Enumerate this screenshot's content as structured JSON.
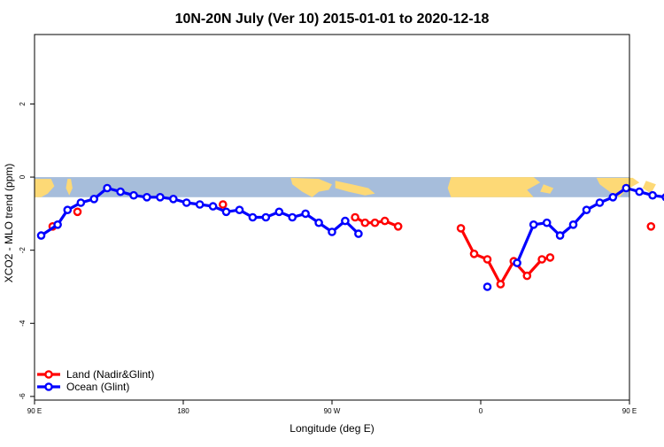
{
  "chart_data": {
    "type": "line",
    "title": "10N-20N July (Ver 10)   2015-01-01 to 2020-12-18",
    "xlabel": "Longitude (deg E)",
    "ylabel": "XCO2 - MLO trend (ppm)",
    "xlim": [
      90,
      450
    ],
    "ylim": [
      -6.1,
      3.9
    ],
    "x_ticks": [
      {
        "value": 90,
        "label": "90 E"
      },
      {
        "value": 180,
        "label": "180"
      },
      {
        "value": 270,
        "label": "90 W"
      },
      {
        "value": 360,
        "label": "0"
      },
      {
        "value": 450,
        "label": "90 E"
      },
      {
        "value": 540,
        "label": "180"
      }
    ],
    "y_ticks": [
      {
        "value": -6,
        "label": "-6"
      },
      {
        "value": -4,
        "label": "-4"
      },
      {
        "value": -2,
        "label": "-2"
      },
      {
        "value": 0,
        "label": "0"
      },
      {
        "value": 2,
        "label": "2"
      }
    ],
    "legend_position": "bottom-left",
    "map_strip": {
      "ymin": -0.55,
      "ymax": 0.0,
      "ocean_color": "#a6bddb",
      "land_color": "#fdd976"
    },
    "series": [
      {
        "name": "Land (Nadir&Glint)",
        "color": "#ff0000",
        "segments": [
          [
            [
              101,
              -1.35
            ]
          ],
          [
            [
              116,
              -0.95
            ]
          ],
          [
            [
              204,
              -0.75
            ]
          ],
          [
            [
              284,
              -1.1
            ],
            [
              290,
              -1.25
            ],
            [
              296,
              -1.25
            ],
            [
              302,
              -1.2
            ],
            [
              310,
              -1.35
            ]
          ],
          [
            [
              348,
              -1.4
            ],
            [
              356,
              -2.1
            ],
            [
              364,
              -2.25
            ],
            [
              372,
              -2.93
            ],
            [
              380,
              -2.3
            ],
            [
              388,
              -2.7
            ],
            [
              397,
              -2.25
            ],
            [
              402,
              -2.2
            ]
          ],
          [
            [
              463,
              -1.35
            ]
          ],
          [
            [
              474,
              -1.35
            ]
          ],
          [
            [
              492,
              -0.95
            ]
          ]
        ]
      },
      {
        "name": "Ocean (Glint)",
        "color": "#0000ff",
        "segments": [
          [
            [
              94,
              -1.6
            ],
            [
              104,
              -1.3
            ],
            [
              110,
              -0.9
            ],
            [
              118,
              -0.7
            ],
            [
              126,
              -0.6
            ],
            [
              134,
              -0.3
            ],
            [
              142,
              -0.4
            ],
            [
              150,
              -0.5
            ],
            [
              158,
              -0.55
            ],
            [
              166,
              -0.55
            ],
            [
              174,
              -0.6
            ],
            [
              182,
              -0.7
            ],
            [
              190,
              -0.75
            ],
            [
              198,
              -0.8
            ],
            [
              206,
              -0.95
            ],
            [
              214,
              -0.9
            ],
            [
              222,
              -1.1
            ],
            [
              230,
              -1.1
            ],
            [
              238,
              -0.95
            ],
            [
              246,
              -1.1
            ],
            [
              254,
              -1.0
            ],
            [
              262,
              -1.25
            ],
            [
              270,
              -1.5
            ],
            [
              278,
              -1.2
            ],
            [
              286,
              -1.55
            ]
          ],
          [
            [
              364,
              -3.0
            ]
          ],
          [
            [
              382,
              -2.35
            ],
            [
              392,
              -1.3
            ],
            [
              400,
              -1.25
            ],
            [
              408,
              -1.6
            ],
            [
              416,
              -1.3
            ],
            [
              424,
              -0.9
            ],
            [
              432,
              -0.7
            ],
            [
              440,
              -0.55
            ],
            [
              448,
              -0.3
            ],
            [
              456,
              -0.4
            ],
            [
              464,
              -0.5
            ],
            [
              472,
              -0.55
            ]
          ]
        ]
      }
    ]
  }
}
